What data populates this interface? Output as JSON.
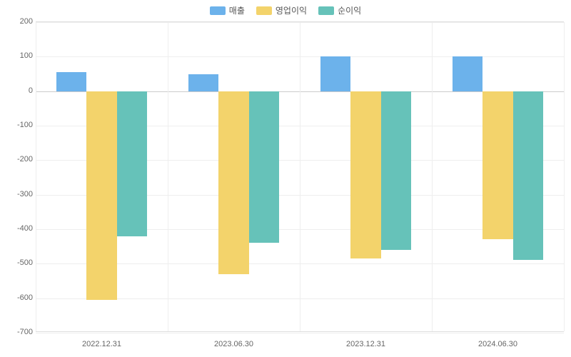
{
  "chart": {
    "type": "bar",
    "background_color": "#ffffff",
    "grid_color": "#eeeeee",
    "axis_text_color": "#666666",
    "legend_text_color": "#555555",
    "tick_fontsize": 11,
    "legend_fontsize": 12,
    "categories": [
      "2022.12.31",
      "2023.06.30",
      "2023.12.31",
      "2024.06.30"
    ],
    "series": [
      {
        "name": "매출",
        "color": "#6cb2eb",
        "values": [
          55,
          48,
          100,
          100
        ]
      },
      {
        "name": "영업이익",
        "color": "#f3d36b",
        "values": [
          -605,
          -530,
          -485,
          -430
        ]
      },
      {
        "name": "순이익",
        "color": "#66c2b9",
        "values": [
          -420,
          -440,
          -460,
          -490
        ]
      }
    ],
    "ylim": [
      -700,
      200
    ],
    "ytick_step": 100,
    "bar_width": 0.23,
    "group_gap": 0.12
  }
}
